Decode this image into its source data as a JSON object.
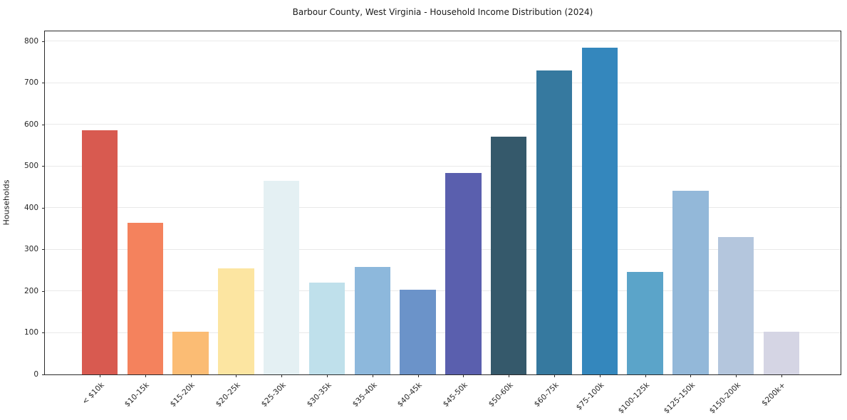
{
  "chart_data": {
    "type": "bar",
    "title": "Barbour County, West Virginia - Household Income Distribution (2024)",
    "xlabel": "",
    "ylabel": "Households",
    "categories": [
      "< $10k",
      "$10-15k",
      "$15-20k",
      "$20-25k",
      "$25-30k",
      "$30-35k",
      "$35-40k",
      "$40-45k",
      "$45-50k",
      "$50-60k",
      "$60-75k",
      "$75-100k",
      "$100-125k",
      "$125-150k",
      "$150-200k",
      "$200k+"
    ],
    "values": [
      587,
      365,
      103,
      255,
      465,
      221,
      258,
      203,
      485,
      571,
      730,
      785,
      246,
      441,
      330,
      102
    ],
    "bar_colors": [
      "#d85a50",
      "#f4825d",
      "#fbbc74",
      "#fce5a1",
      "#e4f0f3",
      "#bfe0eb",
      "#8db8dc",
      "#6b93c9",
      "#5a5fae",
      "#35596b",
      "#36799f",
      "#3487bd",
      "#5ba4c9",
      "#93b8d9",
      "#b4c6dd",
      "#d5d5e4"
    ],
    "ylim": [
      0,
      828
    ],
    "yticks": [
      0,
      100,
      200,
      300,
      400,
      500,
      600,
      700,
      800
    ],
    "grid": true,
    "grid_axis": "y",
    "legend": false,
    "background": "#ffffff",
    "frame_color": "#2b2b2b",
    "xtick_rotation": 45
  }
}
